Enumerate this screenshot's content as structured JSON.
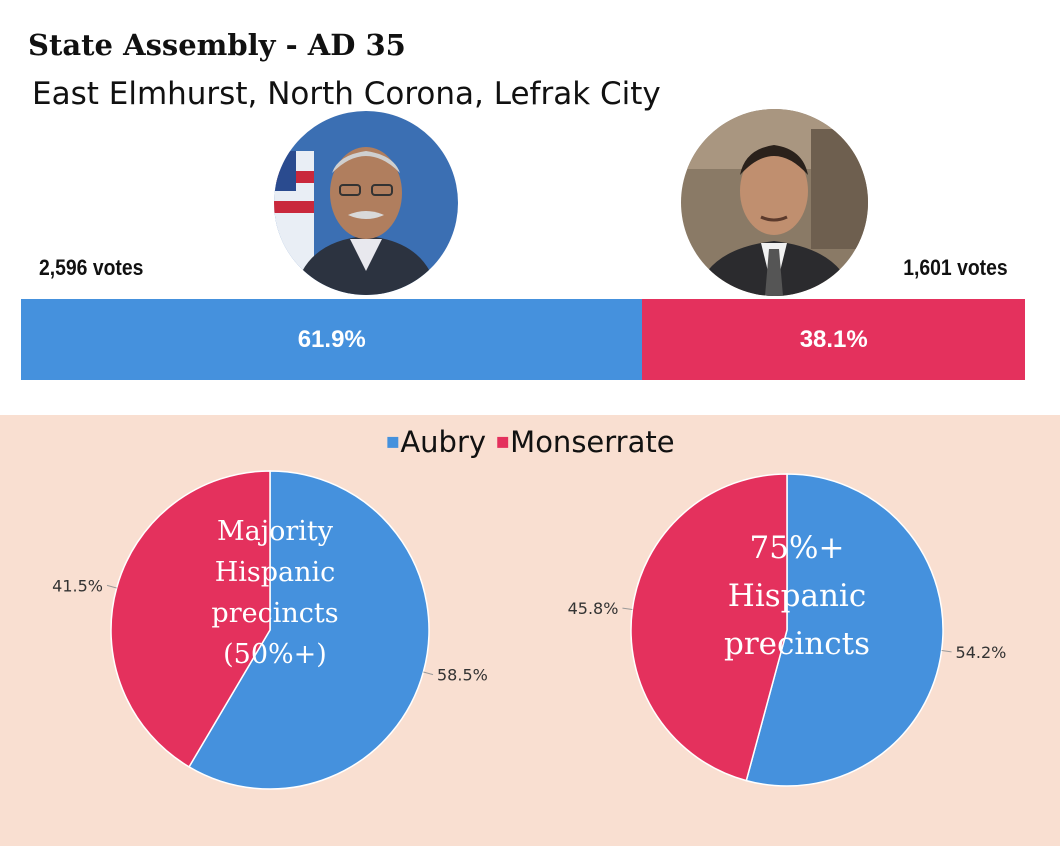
{
  "header": {
    "title": "State Assembly - AD 35",
    "subtitle": "East Elmhurst, North Corona, Lefrak City"
  },
  "candidates": [
    {
      "photo_icon": "candidate-portrait-icon",
      "votes_label": "2,596 votes",
      "share_label": "61.9%",
      "share": 61.9,
      "color": "#4591dd"
    },
    {
      "photo_icon": "candidate-portrait-icon",
      "votes_label": "1,601 votes",
      "share_label": "38.1%",
      "share": 38.1,
      "color": "#e4315d"
    }
  ],
  "legend": [
    {
      "label": "Aubry",
      "color": "#4591dd"
    },
    {
      "label": "Monserrate",
      "color": "#e4315d"
    }
  ],
  "chart_data": [
    {
      "type": "bar",
      "categories": [
        "Aubry",
        "Monserrate"
      ],
      "values": [
        61.9,
        38.1
      ],
      "votes": [
        2596,
        1601
      ],
      "value_labels": [
        "61.9%",
        "38.1%"
      ],
      "colors": [
        "#4591dd",
        "#e4315d"
      ],
      "legend": "none"
    },
    {
      "type": "pie",
      "center_label": "Majority\nHispanic\nprecincts\n(50%+)",
      "labels": [
        "Aubry",
        "Monserrate"
      ],
      "values": [
        58.5,
        41.5
      ],
      "value_labels": [
        "58.5%",
        "41.5%"
      ],
      "colors": [
        "#4591dd",
        "#e4315d"
      ],
      "legend": "top"
    },
    {
      "type": "pie",
      "center_label": "75%+\nHispanic\nprecincts",
      "labels": [
        "Aubry",
        "Monserrate"
      ],
      "values": [
        54.2,
        45.8
      ],
      "value_labels": [
        "54.2%",
        "45.8%"
      ],
      "colors": [
        "#4591dd",
        "#e4315d"
      ],
      "legend": "top"
    }
  ]
}
